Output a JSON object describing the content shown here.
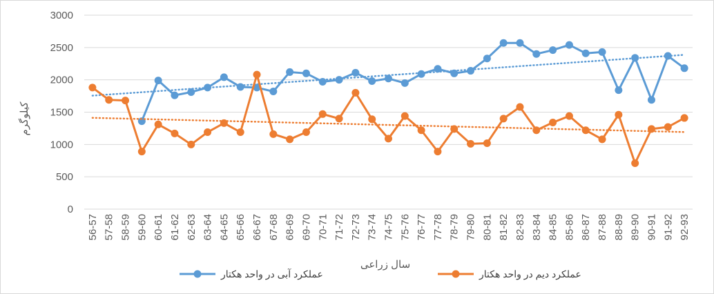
{
  "chart_data": {
    "type": "line",
    "x_label": "سال زراعی",
    "y_label": "کیلوگرم",
    "categories": [
      "56-57",
      "57-58",
      "58-59",
      "59-60",
      "60-61",
      "61-62",
      "62-63",
      "63-64",
      "64-65",
      "65-66",
      "66-67",
      "67-68",
      "68-69",
      "69-70",
      "70-71",
      "71-72",
      "72-73",
      "73-74",
      "74-75",
      "75-76",
      "76-77",
      "77-78",
      "78-79",
      "79-80",
      "80-81",
      "81-82",
      "82-83",
      "83-84",
      "84-85",
      "85-86",
      "86-87",
      "87-88",
      "88-89",
      "89-90",
      "90-91",
      "91-92",
      "92-93"
    ],
    "series": [
      {
        "name": "عملکرد آبی در واحد هکتار",
        "color": "#5b9bd5",
        "values": [
          null,
          null,
          null,
          1360,
          1990,
          1760,
          1810,
          1880,
          2040,
          1890,
          1880,
          1820,
          2120,
          2100,
          1970,
          2000,
          2110,
          1980,
          2020,
          1950,
          2090,
          2170,
          2100,
          2140,
          2330,
          2570,
          2570,
          2400,
          2460,
          2540,
          2410,
          2430,
          1840,
          2340,
          1690,
          2370,
          2180
        ]
      },
      {
        "name": "عملکرد دیم در واحد هکتار",
        "color": "#ed7d31",
        "values": [
          1880,
          1690,
          1680,
          890,
          1310,
          1170,
          1000,
          1190,
          1330,
          1190,
          2080,
          1160,
          1080,
          1190,
          1470,
          1400,
          1800,
          1390,
          1090,
          1440,
          1220,
          890,
          1240,
          1010,
          1020,
          1400,
          1580,
          1220,
          1340,
          1440,
          1220,
          1080,
          1460,
          710,
          1240,
          1270,
          1410
        ]
      }
    ],
    "ylim": [
      0,
      3000
    ],
    "yticks": [
      0,
      500,
      1000,
      1500,
      2000,
      2500,
      3000
    ],
    "grid": true,
    "trendline": "linear",
    "legend": "bottom"
  }
}
